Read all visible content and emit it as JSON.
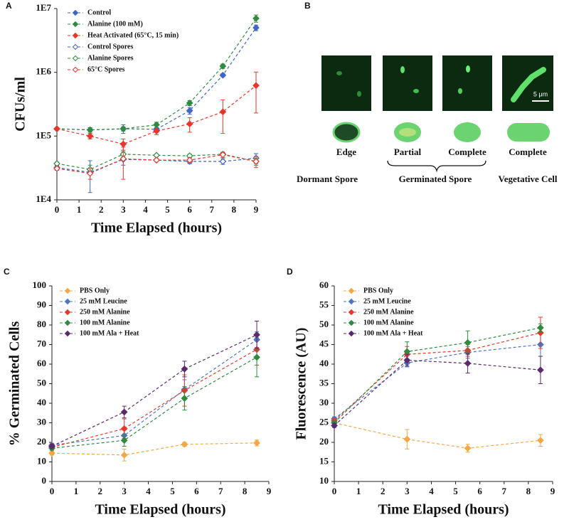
{
  "chart_data": [
    {
      "type": "line",
      "label": "A",
      "yscale": "log",
      "xlabel": "Time Elapsed (hours)",
      "ylabel": "CFUs/ml",
      "x": [
        0,
        1.5,
        3,
        4.5,
        6,
        7.5,
        9
      ],
      "xlim": [
        0,
        9
      ],
      "xticks": [
        0,
        1,
        2,
        3,
        4,
        5,
        6,
        7,
        8,
        9
      ],
      "ylim": [
        10000,
        10000000
      ],
      "yticks": [
        {
          "value": 10000,
          "label": "1E4"
        },
        {
          "value": 100000,
          "label": "1E5"
        },
        {
          "value": 1000000,
          "label": "1E6"
        },
        {
          "value": 10000000,
          "label": "1E7"
        }
      ],
      "legend": "top-left",
      "series": [
        {
          "name": "Control",
          "color": "#3f66c4",
          "marker": "filled",
          "values": [
            130000,
            125000,
            130000,
            128000,
            250000,
            900000,
            5000000
          ],
          "errors": [
            5000,
            10000,
            10000,
            8000,
            30000,
            50000,
            500000
          ]
        },
        {
          "name": "Alanine (100 mM)",
          "color": "#2e8b3e",
          "marker": "filled",
          "values": [
            130000,
            125000,
            130000,
            150000,
            330000,
            1250000,
            7000000
          ],
          "errors": [
            5000,
            10000,
            20000,
            15000,
            30000,
            100000,
            900000
          ]
        },
        {
          "name": "Heat Activated (65°C, 15 min)",
          "color": "#e8372a",
          "marker": "filled",
          "values": [
            130000,
            100000,
            75000,
            120000,
            155000,
            240000,
            620000
          ],
          "errors": [
            5000,
            10000,
            15000,
            15000,
            40000,
            130000,
            390000
          ]
        },
        {
          "name": "Control Spores",
          "color": "#3f66c4",
          "marker": "open",
          "values": [
            32000,
            27000,
            43000,
            42000,
            40000,
            40000,
            45000
          ],
          "errors": [
            2000,
            14000,
            8000,
            2000,
            3000,
            4000,
            8000
          ]
        },
        {
          "name": "Alanine Spores",
          "color": "#2e8b3e",
          "marker": "open",
          "values": [
            37000,
            30000,
            52000,
            50000,
            49000,
            52000,
            40000
          ],
          "errors": [
            2000,
            5000,
            5000,
            2000,
            3000,
            3000,
            5000
          ]
        },
        {
          "name": "65°C Spores",
          "color": "#e8372a",
          "marker": "open",
          "values": [
            31000,
            26000,
            44000,
            42000,
            42000,
            51000,
            40000
          ],
          "errors": [
            2000,
            5000,
            23000,
            2000,
            4000,
            5000,
            8000
          ]
        }
      ]
    },
    {
      "type": "line",
      "label": "C",
      "xlabel": "Time Elapsed (hours)",
      "ylabel": "% Germinated Cells",
      "x": [
        0,
        3,
        5.5,
        8.5
      ],
      "xlim": [
        0,
        9
      ],
      "xticks": [
        0,
        1,
        2,
        3,
        4,
        5,
        6,
        7,
        8,
        9
      ],
      "ylim": [
        0,
        100
      ],
      "yticks": [
        0,
        10,
        20,
        30,
        40,
        50,
        60,
        70,
        80,
        90,
        100
      ],
      "legend": "top-left",
      "series": [
        {
          "name": "PBS Only",
          "color": "#f4a742",
          "marker": "filled",
          "values": [
            14.5,
            13.5,
            19,
            19.7
          ],
          "errors": [
            1,
            3,
            1,
            1.5
          ]
        },
        {
          "name": "25 mM Leucine",
          "color": "#4a74c9",
          "marker": "filled",
          "values": [
            18.5,
            23.5,
            47,
            72.5
          ],
          "errors": [
            1,
            3,
            5,
            4
          ]
        },
        {
          "name": "250 mM Alanine",
          "color": "#e8372a",
          "marker": "filled",
          "values": [
            17.5,
            27,
            46.5,
            67.5
          ],
          "errors": [
            1,
            5,
            8,
            8
          ]
        },
        {
          "name": "100 mM Alanine",
          "color": "#2e8b3e",
          "marker": "filled",
          "values": [
            17,
            21,
            42.5,
            63.5
          ],
          "errors": [
            1,
            3,
            6,
            10
          ]
        },
        {
          "name": "100 mM Ala + Heat",
          "color": "#5b2a6e",
          "marker": "filled",
          "values": [
            18,
            35.5,
            57.5,
            75
          ],
          "errors": [
            1,
            3,
            4,
            7
          ]
        }
      ]
    },
    {
      "type": "line",
      "label": "D",
      "xlabel": "Time Elapsed (hours)",
      "ylabel": "Fluorescence (AU)",
      "x": [
        0,
        3,
        5.5,
        8.5
      ],
      "xlim": [
        0,
        9
      ],
      "xticks": [
        0,
        1,
        2,
        3,
        4,
        5,
        6,
        7,
        8,
        9
      ],
      "ylim": [
        10,
        60
      ],
      "yticks": [
        10,
        15,
        20,
        25,
        30,
        35,
        40,
        45,
        50,
        55,
        60
      ],
      "legend": "top-left",
      "series": [
        {
          "name": "PBS Only",
          "color": "#f4a742",
          "marker": "filled",
          "values": [
            25,
            20.8,
            18.5,
            20.5
          ],
          "errors": [
            0.5,
            2.5,
            1,
            1.5
          ]
        },
        {
          "name": "25 mM Leucine",
          "color": "#4a74c9",
          "marker": "filled",
          "values": [
            26,
            40.3,
            43,
            45
          ],
          "errors": [
            0.5,
            1,
            1.5,
            3
          ]
        },
        {
          "name": "250 mM Alanine",
          "color": "#e8372a",
          "marker": "filled",
          "values": [
            25.5,
            42.5,
            43.5,
            48
          ],
          "errors": [
            0.5,
            2,
            1.5,
            4
          ]
        },
        {
          "name": "100 mM Alanine",
          "color": "#2e8b3e",
          "marker": "filled",
          "values": [
            25,
            43.2,
            45.5,
            49.3
          ],
          "errors": [
            0.5,
            2.5,
            3,
            1
          ]
        },
        {
          "name": "100 mM Ala + Heat",
          "color": "#5b2a6e",
          "marker": "filled",
          "values": [
            24.3,
            41,
            40.2,
            38.5
          ],
          "errors": [
            0.5,
            1.5,
            2.5,
            3.5
          ]
        }
      ]
    }
  ],
  "diagram": {
    "label": "B",
    "scale_bar": "5 μm",
    "stages": [
      "Edge",
      "Partial",
      "Complete",
      "Complete"
    ],
    "groups": [
      "Dormant Spore",
      "Germinated Spore",
      "Vegetative Cell"
    ]
  }
}
